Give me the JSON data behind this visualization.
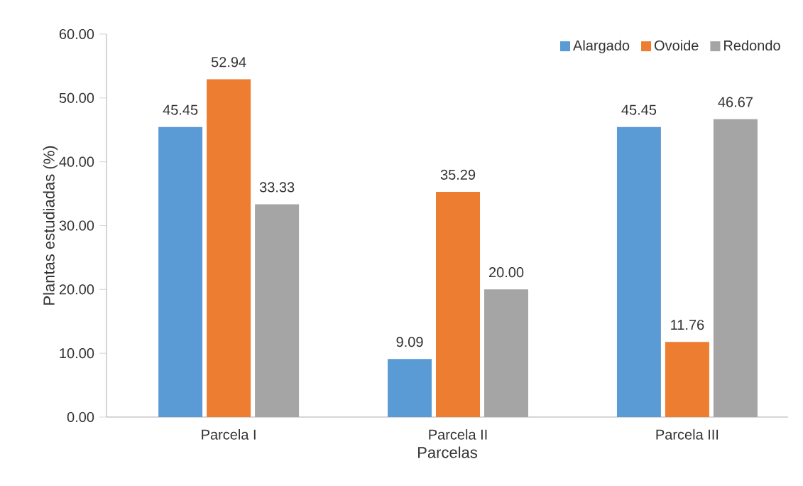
{
  "chart_data": {
    "type": "bar",
    "xlabel": "Parcelas",
    "ylabel": "Plantas estudiadas (%)",
    "categories": [
      "Parcela I",
      "Parcela II",
      "Parcela III"
    ],
    "series": [
      {
        "name": "Alargado",
        "color": "#5b9bd5",
        "values": [
          45.45,
          9.09,
          45.45
        ],
        "value_labels": [
          "45.45",
          "9.09",
          "45.45"
        ]
      },
      {
        "name": "Ovoide",
        "color": "#ed7d31",
        "values": [
          52.94,
          35.29,
          11.76
        ],
        "value_labels": [
          "52.94",
          "35.29",
          "11.76"
        ]
      },
      {
        "name": "Redondo",
        "color": "#a5a5a5",
        "values": [
          33.33,
          20.0,
          46.67
        ],
        "value_labels": [
          "33.33",
          "20.00",
          "46.67"
        ]
      }
    ],
    "ylim": [
      0,
      60
    ],
    "yticks": [
      {
        "value": 0,
        "label": "0.00"
      },
      {
        "value": 10,
        "label": "10.00"
      },
      {
        "value": 20,
        "label": "20.00"
      },
      {
        "value": 30,
        "label": "30.00"
      },
      {
        "value": 40,
        "label": "40.00"
      },
      {
        "value": 50,
        "label": "50.00"
      },
      {
        "value": 60,
        "label": "60.00"
      }
    ],
    "grid": false,
    "legend": "top right"
  }
}
